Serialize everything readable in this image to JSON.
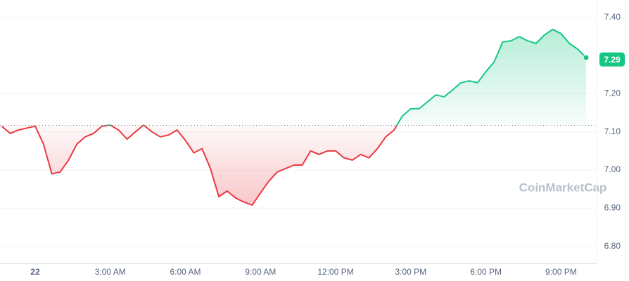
{
  "chart_data": {
    "type": "line",
    "categories": [
      null,
      null,
      null,
      null,
      "22",
      null,
      null,
      null,
      null,
      null,
      null,
      null,
      null,
      "3:00 AM",
      null,
      null,
      null,
      null,
      null,
      null,
      null,
      null,
      "6:00 AM",
      null,
      null,
      null,
      null,
      null,
      null,
      null,
      null,
      "9:00 AM",
      null,
      null,
      null,
      null,
      null,
      null,
      null,
      null,
      "12:00 PM",
      null,
      null,
      null,
      null,
      null,
      null,
      null,
      null,
      "3:00 PM",
      null,
      null,
      null,
      null,
      null,
      null,
      null,
      null,
      "6:00 PM",
      null,
      null,
      null,
      null,
      null,
      null,
      null,
      null,
      "9:00 PM",
      null,
      null,
      null
    ],
    "values": [
      7.115,
      7.096,
      7.105,
      7.11,
      7.115,
      7.068,
      6.99,
      6.995,
      7.026,
      7.068,
      7.087,
      7.096,
      7.115,
      7.118,
      7.105,
      7.081,
      7.1,
      7.118,
      7.1,
      7.087,
      7.092,
      7.105,
      7.078,
      7.045,
      7.056,
      7.004,
      6.93,
      6.945,
      6.927,
      6.916,
      6.908,
      6.94,
      6.971,
      6.995,
      7.004,
      7.013,
      7.013,
      7.05,
      7.041,
      7.05,
      7.05,
      7.032,
      7.026,
      7.041,
      7.032,
      7.056,
      7.087,
      7.105,
      7.142,
      7.161,
      7.161,
      7.179,
      7.197,
      7.192,
      7.21,
      7.229,
      7.234,
      7.229,
      7.258,
      7.284,
      7.336,
      7.339,
      7.35,
      7.339,
      7.332,
      7.354,
      7.369,
      7.358,
      7.332,
      7.317,
      7.295
    ],
    "baseline": 7.117,
    "up_color": "#16c784",
    "down_color": "#ea3943",
    "current_price": 7.29,
    "watermark": "CoinMarketCap",
    "ylim": [
      6.755,
      7.446
    ],
    "yticks": [
      {
        "value": 6.8,
        "label": "6.80"
      },
      {
        "value": 6.9,
        "label": "6.90"
      },
      {
        "value": 7.0,
        "label": "7.00"
      },
      {
        "value": 7.1,
        "label": "7.10"
      },
      {
        "value": 7.2,
        "label": "7.20"
      },
      {
        "value": 7.4,
        "label": "7.40"
      }
    ],
    "grid": true
  }
}
